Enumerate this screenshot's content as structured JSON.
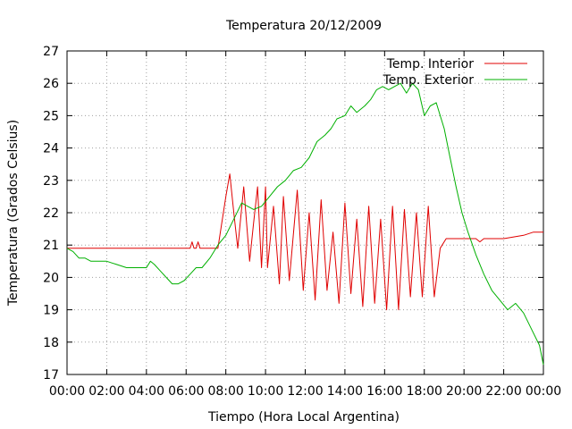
{
  "chart_data": {
    "type": "line",
    "title": "Temperatura 20/12/2009",
    "xlabel": "Tiempo (Hora Local Argentina)",
    "ylabel": "Temperatura (Grados Celsius)",
    "xlim": [
      0,
      24
    ],
    "ylim": [
      17,
      27
    ],
    "x_tick_labels": [
      "00:00",
      "02:00",
      "04:00",
      "06:00",
      "08:00",
      "10:00",
      "12:00",
      "14:00",
      "16:00",
      "18:00",
      "20:00",
      "22:00",
      "00:00"
    ],
    "y_tick_labels": [
      "17",
      "18",
      "19",
      "20",
      "21",
      "22",
      "23",
      "24",
      "25",
      "26",
      "27"
    ],
    "grid": true,
    "legend_position": "top-right",
    "series": [
      {
        "name": "Temp. Interior",
        "color": "#e00000",
        "x": [
          0,
          6.2,
          6.3,
          6.4,
          6.5,
          6.6,
          6.7,
          6.8,
          7.6,
          8.0,
          8.2,
          8.4,
          8.6,
          8.9,
          9.2,
          9.4,
          9.6,
          9.8,
          10.0,
          10.1,
          10.4,
          10.7,
          10.9,
          11.2,
          11.6,
          11.9,
          12.2,
          12.5,
          12.8,
          13.1,
          13.4,
          13.7,
          14.0,
          14.3,
          14.6,
          14.9,
          15.2,
          15.5,
          15.8,
          16.1,
          16.4,
          16.7,
          17.0,
          17.3,
          17.6,
          17.9,
          18.2,
          18.5,
          18.8,
          19.1,
          19.4,
          19.7,
          20.0,
          20.3,
          20.6,
          20.8,
          21.0,
          21.2,
          21.4,
          22.0,
          23.0,
          23.5,
          24.0
        ],
        "y": [
          20.9,
          20.9,
          21.1,
          20.9,
          20.9,
          21.1,
          20.9,
          20.9,
          20.9,
          22.5,
          23.2,
          22.0,
          20.9,
          22.8,
          20.5,
          21.7,
          22.8,
          20.3,
          22.8,
          20.3,
          22.2,
          19.8,
          22.5,
          19.9,
          22.7,
          19.6,
          22.0,
          19.3,
          22.4,
          19.6,
          21.4,
          19.2,
          22.3,
          19.5,
          21.8,
          19.1,
          22.2,
          19.2,
          21.8,
          19.0,
          22.2,
          19.0,
          22.1,
          19.4,
          22.0,
          19.4,
          22.2,
          19.4,
          20.9,
          21.2,
          21.2,
          21.2,
          21.2,
          21.2,
          21.2,
          21.1,
          21.2,
          21.2,
          21.2,
          21.2,
          21.3,
          21.4,
          21.4
        ]
      },
      {
        "name": "Temp. Exterior",
        "color": "#00b000",
        "x": [
          0,
          0.3,
          0.6,
          0.9,
          1.2,
          1.5,
          2.0,
          2.5,
          3.0,
          3.5,
          4.0,
          4.2,
          4.4,
          4.7,
          5.0,
          5.3,
          5.6,
          5.9,
          6.2,
          6.5,
          6.8,
          7.2,
          7.6,
          8.0,
          8.4,
          8.8,
          9.1,
          9.4,
          9.8,
          10.2,
          10.6,
          11.0,
          11.4,
          11.8,
          12.2,
          12.6,
          13.0,
          13.3,
          13.6,
          14.0,
          14.3,
          14.6,
          15.0,
          15.3,
          15.6,
          15.9,
          16.2,
          16.5,
          16.8,
          17.1,
          17.4,
          17.7,
          18.0,
          18.3,
          18.6,
          19.0,
          19.3,
          19.6,
          19.9,
          20.2,
          20.6,
          21.0,
          21.4,
          21.8,
          22.2,
          22.6,
          23.0,
          23.4,
          23.8,
          24.0
        ],
        "y": [
          20.9,
          20.8,
          20.6,
          20.6,
          20.5,
          20.5,
          20.5,
          20.4,
          20.3,
          20.3,
          20.3,
          20.5,
          20.4,
          20.2,
          20.0,
          19.8,
          19.8,
          19.9,
          20.1,
          20.3,
          20.3,
          20.6,
          21.0,
          21.3,
          21.8,
          22.3,
          22.2,
          22.1,
          22.2,
          22.5,
          22.8,
          23.0,
          23.3,
          23.4,
          23.7,
          24.2,
          24.4,
          24.6,
          24.9,
          25.0,
          25.3,
          25.1,
          25.3,
          25.5,
          25.8,
          25.9,
          25.8,
          25.9,
          26.0,
          25.7,
          26.0,
          25.8,
          25.0,
          25.3,
          25.4,
          24.6,
          23.7,
          22.8,
          22.0,
          21.4,
          20.7,
          20.1,
          19.6,
          19.3,
          19.0,
          19.2,
          18.9,
          18.4,
          17.9,
          17.3
        ]
      }
    ]
  }
}
